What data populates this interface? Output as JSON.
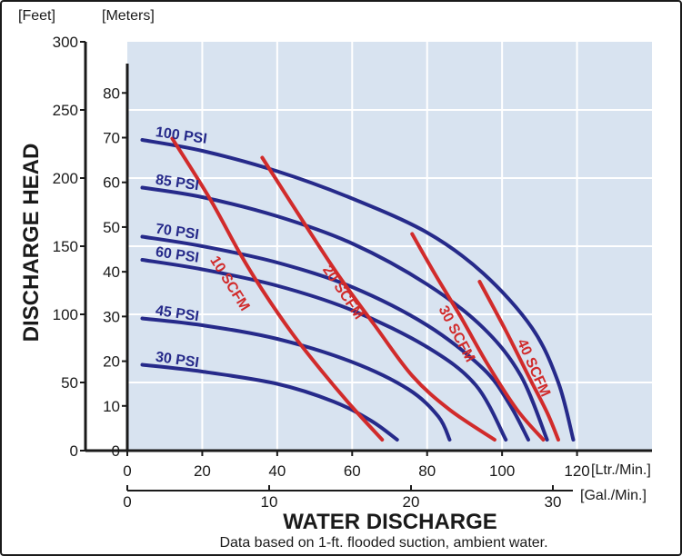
{
  "chart_data": {
    "type": "line",
    "title": "",
    "y_label": "DISCHARGE HEAD",
    "x_label": "WATER DISCHARGE",
    "note": "Data based on 1-ft. flooded suction, ambient water.",
    "y_feet": {
      "unit_label": "[Feet]",
      "range": [
        0,
        300
      ],
      "ticks": [
        "300",
        "250",
        "200",
        "150",
        "100",
        "50",
        "0"
      ]
    },
    "y_meters": {
      "unit_label": "[Meters]",
      "range": [
        0,
        91.44
      ],
      "ticks": [
        "80",
        "70",
        "60",
        "50",
        "40",
        "30",
        "20",
        "10",
        "0"
      ]
    },
    "x_ltr": {
      "unit_label": "[Ltr./Min.]",
      "range": [
        0,
        140
      ],
      "ticks": [
        "0",
        "20",
        "40",
        "60",
        "80",
        "100",
        "120"
      ]
    },
    "x_gal": {
      "unit_label": "[Gal./Min.]",
      "range": [
        0,
        36.98
      ],
      "ticks": [
        "0",
        "10",
        "20",
        "30"
      ]
    },
    "colors": {
      "plot_bg": "#d8e3f0",
      "grid": "#ffffff",
      "psi_curve": "#262a8a",
      "scfm_curve": "#d12b2b",
      "axis": "#1a1a1a"
    },
    "pressure_curves": [
      {
        "label": "100 PSI",
        "points": [
          [
            4,
            228
          ],
          [
            20,
            220
          ],
          [
            40,
            205
          ],
          [
            60,
            185
          ],
          [
            80,
            160
          ],
          [
            95,
            130
          ],
          [
            108,
            90
          ],
          [
            115,
            50
          ],
          [
            119,
            8
          ]
        ]
      },
      {
        "label": "85 PSI",
        "points": [
          [
            4,
            193
          ],
          [
            20,
            186
          ],
          [
            40,
            172
          ],
          [
            60,
            152
          ],
          [
            80,
            122
          ],
          [
            95,
            90
          ],
          [
            105,
            55
          ],
          [
            112,
            8
          ]
        ]
      },
      {
        "label": "70 PSI",
        "points": [
          [
            4,
            157
          ],
          [
            20,
            150
          ],
          [
            40,
            138
          ],
          [
            60,
            120
          ],
          [
            80,
            92
          ],
          [
            95,
            60
          ],
          [
            102,
            34
          ],
          [
            107,
            8
          ]
        ]
      },
      {
        "label": "60 PSI",
        "points": [
          [
            4,
            140
          ],
          [
            20,
            133
          ],
          [
            40,
            121
          ],
          [
            60,
            103
          ],
          [
            80,
            76
          ],
          [
            93,
            48
          ],
          [
            101,
            8
          ]
        ]
      },
      {
        "label": "45 PSI",
        "points": [
          [
            4,
            97
          ],
          [
            20,
            92
          ],
          [
            40,
            82
          ],
          [
            60,
            65
          ],
          [
            75,
            45
          ],
          [
            83,
            25
          ],
          [
            86,
            8
          ]
        ]
      },
      {
        "label": "30 PSI",
        "points": [
          [
            4,
            63
          ],
          [
            20,
            58
          ],
          [
            40,
            49
          ],
          [
            55,
            36
          ],
          [
            65,
            22
          ],
          [
            72,
            8
          ]
        ]
      }
    ],
    "air_curves": [
      {
        "label": "10 SCFM",
        "points": [
          [
            12,
            229
          ],
          [
            22,
            185
          ],
          [
            30,
            145
          ],
          [
            36,
            118
          ],
          [
            44,
            86
          ],
          [
            52,
            58
          ],
          [
            60,
            32
          ],
          [
            68,
            8
          ]
        ]
      },
      {
        "label": "20 SCFM",
        "points": [
          [
            36,
            215
          ],
          [
            46,
            172
          ],
          [
            56,
            130
          ],
          [
            66,
            92
          ],
          [
            76,
            55
          ],
          [
            86,
            30
          ],
          [
            98,
            8
          ]
        ]
      },
      {
        "label": "30 SCFM",
        "points": [
          [
            76,
            159
          ],
          [
            82,
            130
          ],
          [
            89,
            98
          ],
          [
            96,
            64
          ],
          [
            104,
            30
          ],
          [
            111,
            8
          ]
        ]
      },
      {
        "label": "40 SCFM",
        "points": [
          [
            94,
            124
          ],
          [
            101,
            88
          ],
          [
            107,
            55
          ],
          [
            112,
            28
          ],
          [
            115,
            8
          ]
        ]
      }
    ]
  }
}
